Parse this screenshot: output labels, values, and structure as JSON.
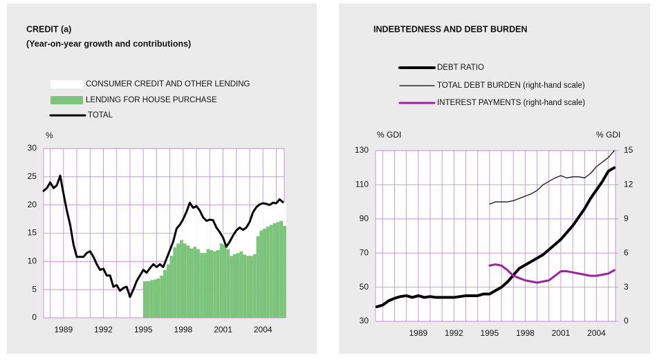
{
  "chart_data": [
    {
      "type": "combo",
      "title": "CREDIT (a)",
      "subtitle": "(Year-on-year growth and contributions)",
      "ylabel": "%",
      "x": [
        1987.5,
        1987.75,
        1988,
        1988.25,
        1988.5,
        1988.75,
        1989,
        1989.25,
        1989.5,
        1989.75,
        1990,
        1990.25,
        1990.5,
        1990.75,
        1991,
        1991.25,
        1991.5,
        1991.75,
        1992,
        1992.25,
        1992.5,
        1992.75,
        1993,
        1993.25,
        1993.5,
        1993.75,
        1994,
        1994.25,
        1994.5,
        1994.75,
        1995,
        1995.25,
        1995.5,
        1995.75,
        1996,
        1996.25,
        1996.5,
        1996.75,
        1997,
        1997.25,
        1997.5,
        1997.75,
        1998,
        1998.25,
        1998.5,
        1998.75,
        1999,
        1999.25,
        1999.5,
        1999.75,
        2000,
        2000.25,
        2000.5,
        2000.75,
        2001,
        2001.25,
        2001.5,
        2001.75,
        2002,
        2002.25,
        2002.5,
        2002.75,
        2003,
        2003.25,
        2003.5,
        2003.75,
        2004,
        2004.25,
        2004.5,
        2004.75,
        2005,
        2005.25,
        2005.5
      ],
      "xlim": [
        1987.5,
        2005.6
      ],
      "xticks": [
        1989,
        1992,
        1995,
        1998,
        2001,
        2004
      ],
      "xgrid": [
        1988,
        1989,
        1990,
        1991,
        1992,
        1993,
        1994,
        1995,
        1996,
        1997,
        1998,
        1999,
        2000,
        2001,
        2002,
        2003,
        2004,
        2005
      ],
      "ylim": [
        0,
        30
      ],
      "yticks": [
        0,
        5,
        10,
        15,
        20,
        25,
        30
      ],
      "series": [
        {
          "name": "CONSUMER CREDIT AND OTHER LENDING",
          "kind": "bar",
          "color": "#ffffff",
          "values": [
            null,
            null,
            null,
            null,
            null,
            null,
            null,
            null,
            null,
            null,
            null,
            null,
            null,
            null,
            null,
            null,
            null,
            null,
            null,
            null,
            null,
            null,
            null,
            null,
            null,
            null,
            null,
            null,
            null,
            null,
            2.0,
            1.5,
            2.1,
            2.7,
            2.0,
            2.0,
            0.5,
            1.0,
            1.0,
            1.0,
            2.6,
            2.7,
            4.3,
            6.0,
            8.1,
            6.9,
            7.6,
            7.5,
            6.3,
            5.0,
            5.4,
            5.5,
            4.0,
            2.0,
            1.2,
            0.4,
            2.5,
            3.3,
            4.0,
            4.2,
            4.4,
            5.0,
            6.0,
            7.4,
            5.1,
            4.6,
            4.5,
            4.0,
            3.5,
            3.6,
            3.3,
            3.8,
            4.2
          ]
        },
        {
          "name": "LENDING FOR HOUSE PURCHASE",
          "kind": "bar",
          "color": "#7dc47d",
          "values": [
            null,
            null,
            null,
            null,
            null,
            null,
            null,
            null,
            null,
            null,
            null,
            null,
            null,
            null,
            null,
            null,
            null,
            null,
            null,
            null,
            null,
            null,
            null,
            null,
            null,
            null,
            null,
            null,
            null,
            null,
            6.5,
            6.5,
            6.7,
            6.8,
            7.0,
            7.5,
            8.5,
            9.5,
            11,
            12.5,
            13.2,
            13.8,
            13.2,
            12.8,
            12.3,
            12.6,
            12.2,
            11.5,
            11.5,
            12.2,
            12,
            11.8,
            12,
            13.2,
            13,
            12.2,
            11,
            11.3,
            11.5,
            11.8,
            11.2,
            11,
            11,
            11.3,
            14.5,
            15.5,
            15.8,
            16.2,
            16.5,
            16.8,
            17,
            17.2,
            16.3
          ]
        },
        {
          "name": "TOTAL",
          "kind": "line",
          "color": "#000000",
          "values": [
            22.5,
            23,
            24,
            23,
            23.5,
            25.2,
            22,
            19,
            16.5,
            13,
            10.8,
            10.8,
            10.8,
            11.5,
            11.8,
            10.8,
            9.5,
            8.5,
            8.7,
            7.5,
            7.5,
            5.5,
            5.8,
            4.8,
            5.3,
            5.5,
            3.7,
            5,
            6.5,
            7.5,
            8.5,
            8.0,
            8.8,
            9.5,
            9.0,
            9.5,
            9.0,
            10.5,
            12,
            13.5,
            15.8,
            16.5,
            17.5,
            18.8,
            20.4,
            19.5,
            19.8,
            19,
            17.8,
            17.2,
            17.4,
            17.3,
            16,
            15.2,
            14.2,
            12.6,
            13.5,
            14.6,
            15.5,
            16,
            15.6,
            16.0,
            17,
            18.7,
            19.6,
            20.1,
            20.3,
            20.2,
            20.0,
            20.4,
            20.3,
            21.0,
            20.5
          ]
        }
      ]
    },
    {
      "type": "line",
      "title": "INDEBTEDNESS AND DEBT BURDEN",
      "ylabel": "% GDI",
      "y2label": "% GDI",
      "x": [
        1985.5,
        1986,
        1986.5,
        1987,
        1987.5,
        1988,
        1988.5,
        1989,
        1989.5,
        1990,
        1990.5,
        1991,
        1991.5,
        1992,
        1992.5,
        1993,
        1993.5,
        1994,
        1994.5,
        1995,
        1995.5,
        1996,
        1996.5,
        1997,
        1997.5,
        1998,
        1998.5,
        1999,
        1999.5,
        2000,
        2000.5,
        2001,
        2001.5,
        2002,
        2002.5,
        2003,
        2003.5,
        2004,
        2004.5,
        2005,
        2005.5
      ],
      "xlim": [
        1985.4,
        2005.6
      ],
      "xticks": [
        1989,
        1992,
        1995,
        1998,
        2001,
        2004
      ],
      "xgrid": [
        1986,
        1987,
        1988,
        1989,
        1990,
        1991,
        1992,
        1993,
        1994,
        1995,
        1996,
        1997,
        1998,
        1999,
        2000,
        2001,
        2002,
        2003,
        2004,
        2005
      ],
      "ylim": [
        30,
        130
      ],
      "yticks": [
        30,
        50,
        70,
        90,
        110,
        130
      ],
      "y2lim": [
        0,
        15
      ],
      "y2ticks": [
        0,
        3,
        6,
        9,
        12,
        15
      ],
      "series": [
        {
          "name": "DEBT RATIO",
          "kind": "line",
          "color": "#000000",
          "values": [
            38.5,
            39.5,
            42,
            43.5,
            44.5,
            45,
            44,
            45,
            44,
            44.5,
            44,
            44,
            44,
            44,
            44.5,
            45,
            45,
            45,
            46,
            46,
            48,
            50,
            53,
            57,
            61,
            63,
            65,
            67,
            69,
            72,
            75,
            78,
            82,
            86,
            91,
            96,
            102,
            107,
            112,
            118,
            120
          ]
        },
        {
          "name": "TOTAL DEBT BURDEN (right-hand scale)",
          "kind": "line",
          "axis": "y2",
          "color": "#000000",
          "values": [
            null,
            null,
            null,
            null,
            null,
            null,
            null,
            null,
            null,
            null,
            null,
            null,
            null,
            null,
            null,
            null,
            null,
            null,
            null,
            10.3,
            10.5,
            10.5,
            10.5,
            10.6,
            10.8,
            11.0,
            11.2,
            11.5,
            12.0,
            12.3,
            12.6,
            12.8,
            12.6,
            12.7,
            12.7,
            12.6,
            13.0,
            13.6,
            14.0,
            14.4,
            15.0
          ]
        },
        {
          "name": "INTEREST PAYMENTS (right-hand scale)",
          "kind": "line",
          "axis": "y2",
          "color": "#a0219f",
          "values": [
            null,
            null,
            null,
            null,
            null,
            null,
            null,
            null,
            null,
            null,
            null,
            null,
            null,
            null,
            null,
            null,
            null,
            null,
            null,
            4.9,
            5.0,
            4.9,
            4.5,
            4.0,
            3.8,
            3.6,
            3.5,
            3.4,
            3.5,
            3.6,
            4.0,
            4.4,
            4.4,
            4.3,
            4.2,
            4.1,
            4.0,
            4.0,
            4.1,
            4.2,
            4.5
          ]
        }
      ]
    }
  ]
}
